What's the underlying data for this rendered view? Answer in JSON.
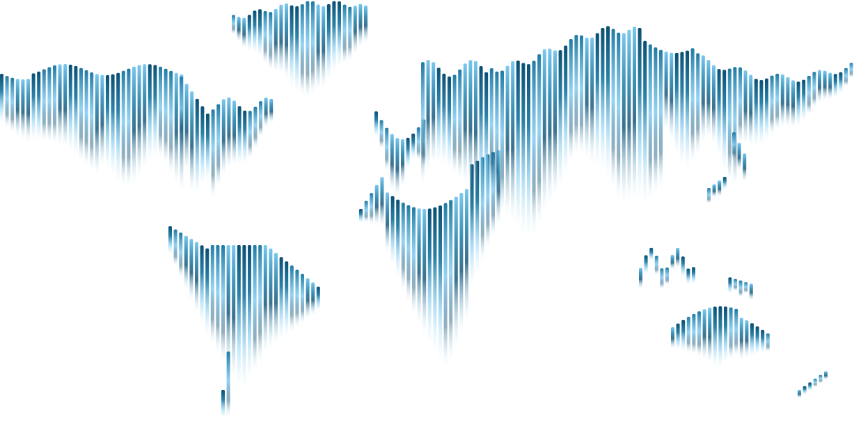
{
  "map": {
    "style": "vertical-striped world map",
    "background": "#ffffff",
    "colors": {
      "dark": "#0a4f73",
      "mid": "#1f7aa3",
      "light": "#7cc8ef",
      "pale": "#bfe6f8"
    },
    "regions": [
      "north-america",
      "greenland",
      "south-america",
      "europe",
      "africa",
      "asia",
      "southeast-asia",
      "australia",
      "new-zealand"
    ]
  }
}
